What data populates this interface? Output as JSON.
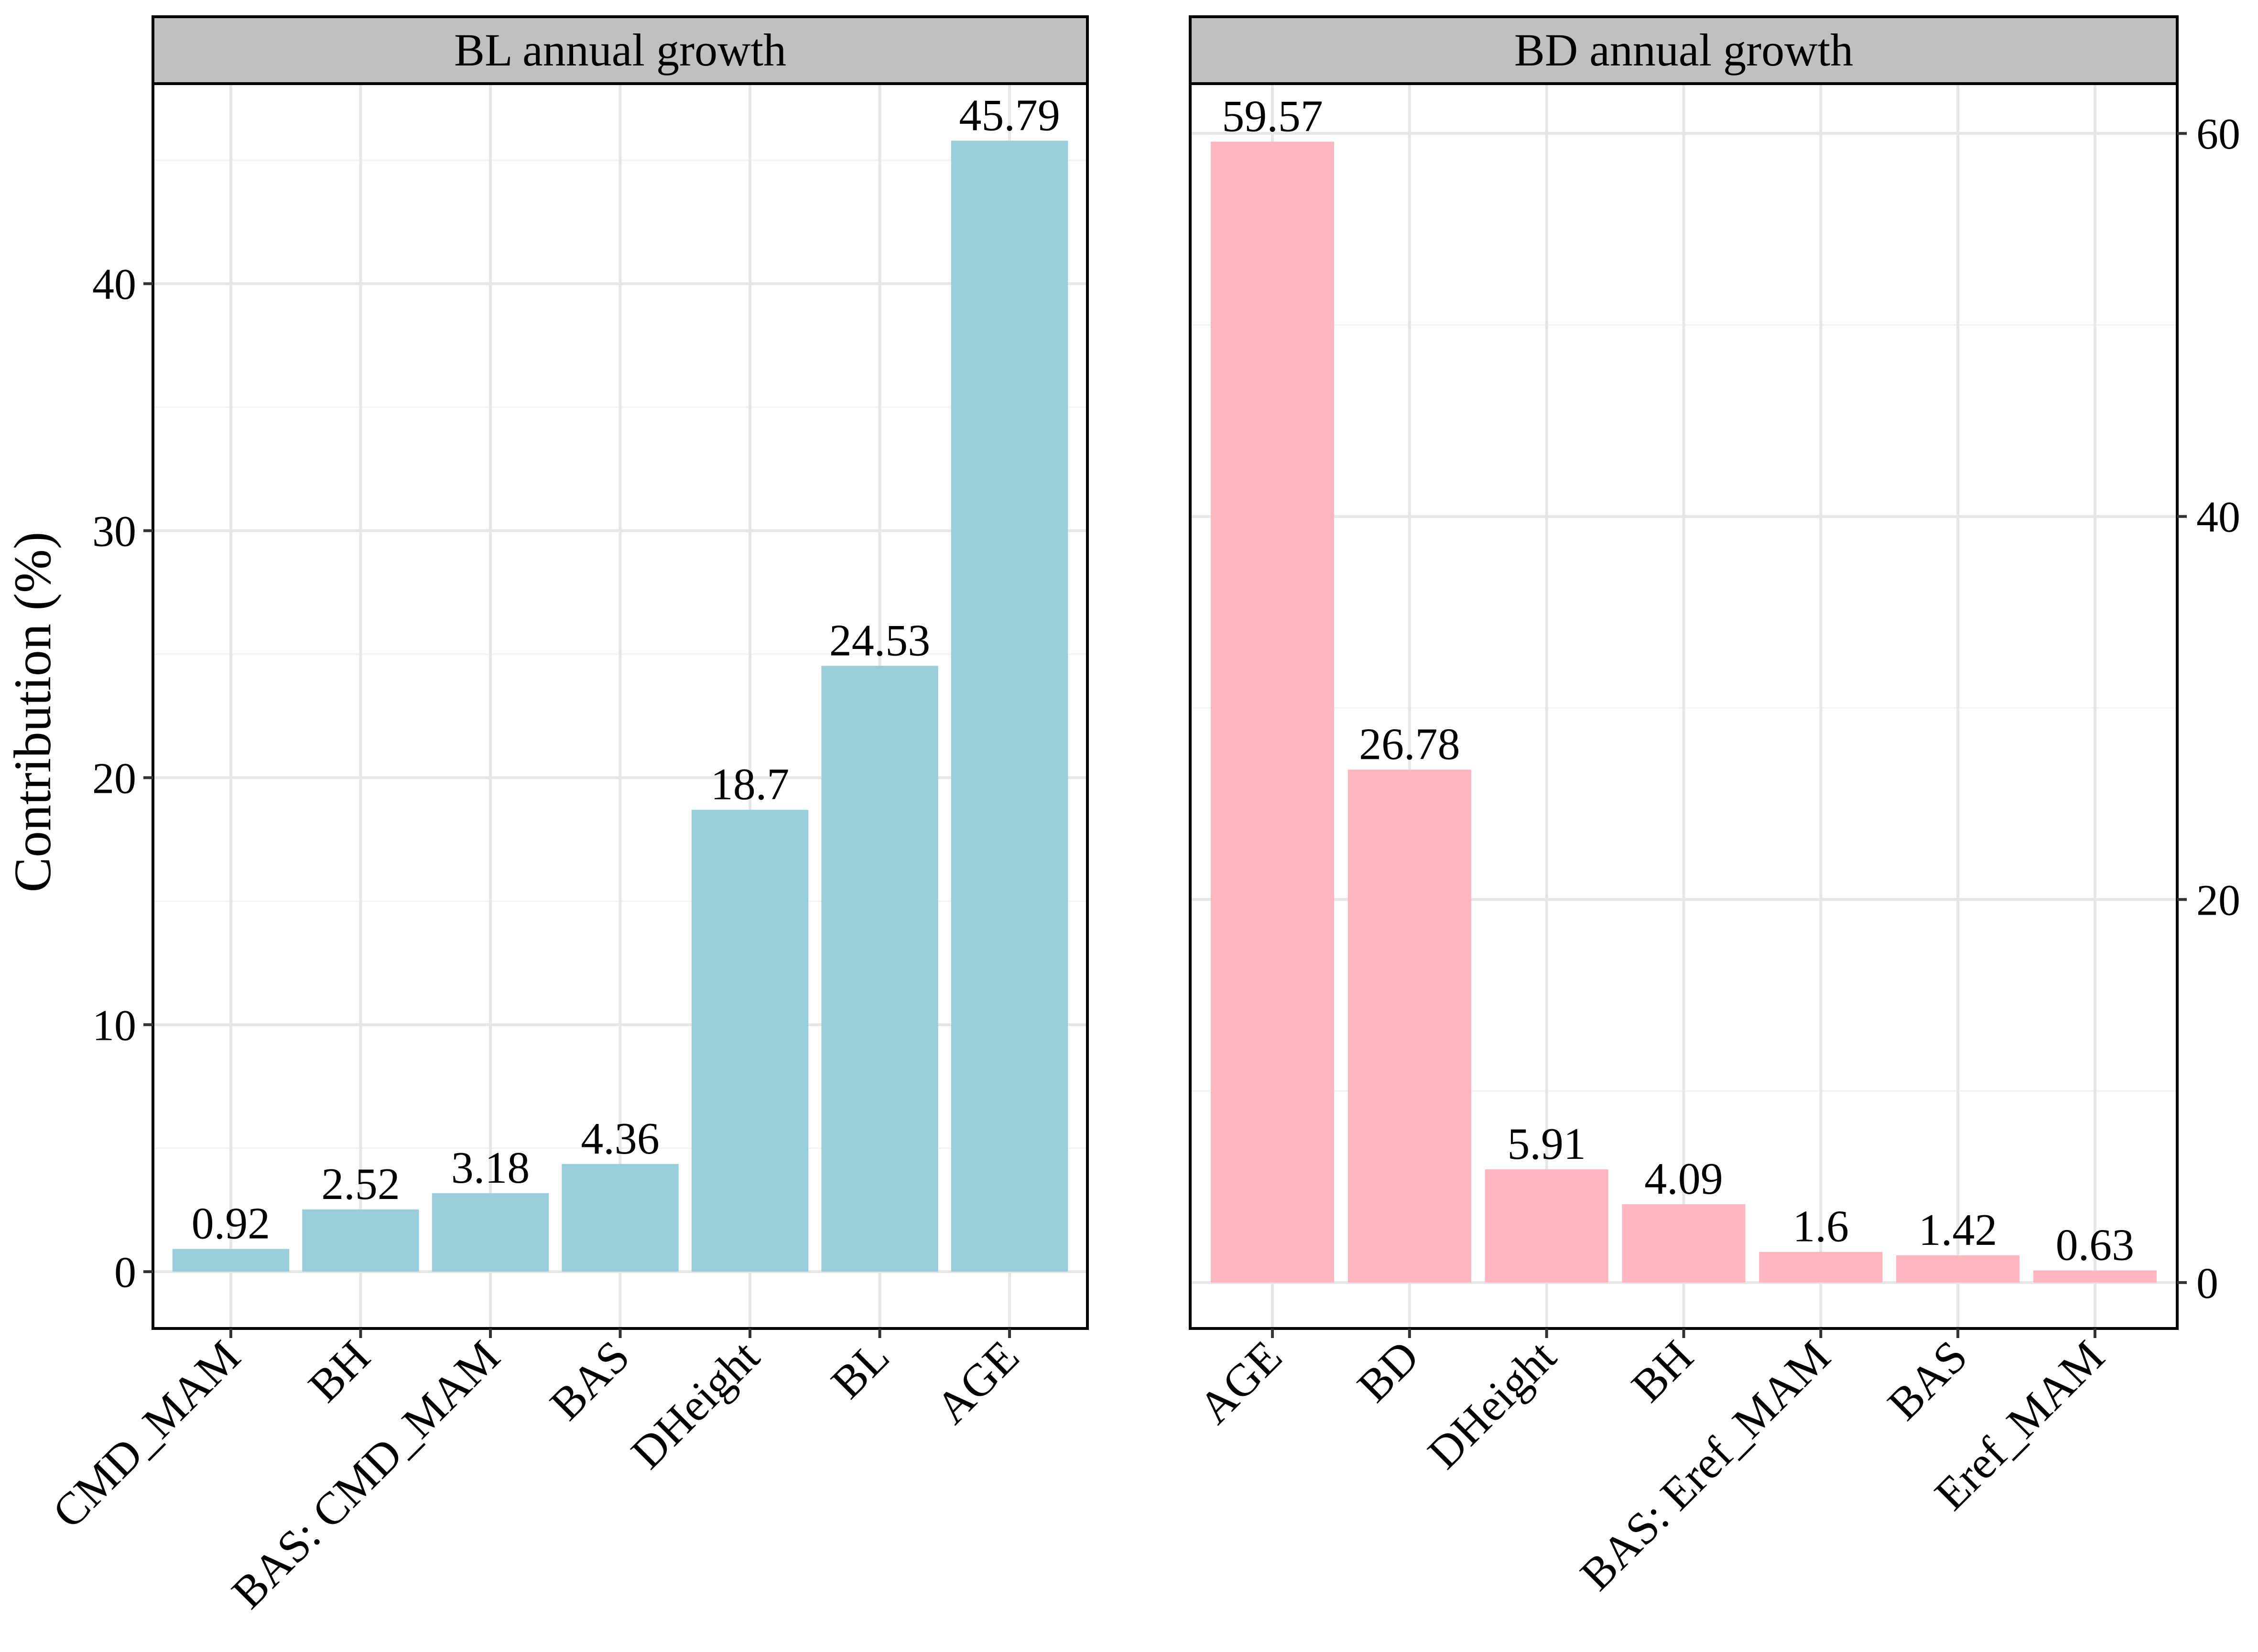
{
  "chart_data": {
    "ylabel": "Contribution (%)",
    "colors": {
      "strip_background": "#c0c0c0",
      "grid_major": "#e6e6e6",
      "grid_minor": "#f2f2f2",
      "panel_border": "#000000"
    },
    "panels": [
      {
        "type": "bar",
        "title": "BL annual growth",
        "y_axis_side": "left",
        "bar_color": "#98cddc",
        "ylim": [
          -2.3,
          48.1
        ],
        "yticks": [
          0,
          10,
          20,
          30,
          40
        ],
        "categories": [
          "CMD_MAM",
          "BH",
          "BAS: CMD_MAM",
          "BAS",
          "DHeight",
          "BL",
          "AGE"
        ],
        "values": [
          0.92,
          2.52,
          3.18,
          4.36,
          18.7,
          24.53,
          45.79
        ],
        "value_labels": [
          "0.92",
          "2.52",
          "3.18",
          "4.36",
          "18.7",
          "24.53",
          "45.79"
        ]
      },
      {
        "type": "bar",
        "title": "BD annual growth",
        "y_axis_side": "right",
        "bar_color": "#ffb6c1",
        "ylim": [
          -2.4,
          62.6
        ],
        "yticks": [
          0,
          20,
          40,
          60
        ],
        "categories": [
          "AGE",
          "BD",
          "DHeight",
          "BH",
          "BAS: Eref_MAM",
          "BAS",
          "Eref_MAM"
        ],
        "values": [
          59.57,
          26.78,
          5.91,
          4.09,
          1.6,
          1.42,
          0.63
        ],
        "value_labels": [
          "59.57",
          "26.78",
          "5.91",
          "4.09",
          "1.6",
          "1.42",
          "0.63"
        ]
      }
    ]
  }
}
